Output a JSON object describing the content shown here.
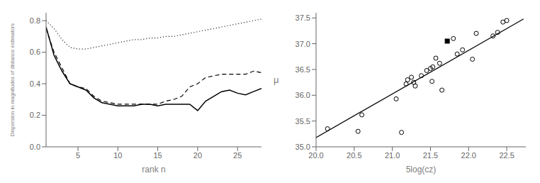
{
  "chart_data": [
    {
      "type": "line",
      "xlabel": "rank n",
      "ylabel": "Dispersion in magnitudes of distance estimators",
      "xlim": [
        1,
        28
      ],
      "ylim": [
        0,
        0.85
      ],
      "xticks": [
        5,
        10,
        15,
        20,
        25
      ],
      "yticks": [
        {
          "value": 0,
          "label": "0.0"
        },
        0.2,
        0.4,
        0.6,
        0.8
      ],
      "x": [
        1,
        2,
        3,
        4,
        5,
        6,
        7,
        8,
        9,
        10,
        11,
        12,
        13,
        14,
        15,
        16,
        17,
        18,
        19,
        20,
        21,
        22,
        23,
        24,
        25,
        26,
        27,
        28
      ],
      "series": [
        {
          "color": "#000000",
          "line_style": "dotted",
          "values": [
            0.8,
            0.75,
            0.68,
            0.63,
            0.62,
            0.62,
            0.63,
            0.64,
            0.65,
            0.66,
            0.67,
            0.68,
            0.68,
            0.69,
            0.69,
            0.7,
            0.7,
            0.71,
            0.72,
            0.73,
            0.74,
            0.75,
            0.76,
            0.77,
            0.78,
            0.79,
            0.8,
            0.81
          ]
        },
        {
          "color": "#000000",
          "line_style": "dashed",
          "values": [
            0.75,
            0.6,
            0.5,
            0.4,
            0.38,
            0.37,
            0.32,
            0.29,
            0.28,
            0.27,
            0.27,
            0.27,
            0.27,
            0.27,
            0.27,
            0.29,
            0.3,
            0.32,
            0.38,
            0.4,
            0.44,
            0.45,
            0.46,
            0.46,
            0.46,
            0.46,
            0.48,
            0.47
          ]
        },
        {
          "color": "#000000",
          "line_style": "solid",
          "values": [
            0.76,
            0.58,
            0.48,
            0.4,
            0.38,
            0.36,
            0.31,
            0.28,
            0.27,
            0.26,
            0.26,
            0.26,
            0.27,
            0.27,
            0.26,
            0.27,
            0.27,
            0.27,
            0.27,
            0.23,
            0.29,
            0.32,
            0.35,
            0.36,
            0.34,
            0.33,
            0.35,
            0.37
          ]
        }
      ]
    },
    {
      "type": "scatter",
      "xlabel": "5log(cz)",
      "ylabel": "μ",
      "xlim": [
        20.0,
        22.75
      ],
      "ylim": [
        35.0,
        37.6
      ],
      "xticks": [
        {
          "value": 20.0,
          "label": "20.0"
        },
        20.5,
        {
          "value": 21.0,
          "label": "21.0"
        },
        21.5,
        {
          "value": 22.0,
          "label": "22.0"
        },
        22.5
      ],
      "yticks": [
        {
          "value": 35.0,
          "label": "35.0"
        },
        35.5,
        {
          "value": 36.0,
          "label": "36.0"
        },
        36.5,
        {
          "value": 37.0,
          "label": "37.0"
        },
        37.5
      ],
      "series": [
        {
          "type": "line",
          "line_style": "solid",
          "color": "#000000",
          "x": [
            20.0,
            22.72
          ],
          "values": [
            35.18,
            37.48
          ]
        },
        {
          "type": "scatter",
          "marker": "circle",
          "color": "#000000",
          "x": [
            20.15,
            20.55,
            20.6,
            21.05,
            21.12,
            21.18,
            21.2,
            21.25,
            21.28,
            21.3,
            21.38,
            21.45,
            21.5,
            21.52,
            21.53,
            21.57,
            21.62,
            21.65,
            21.8,
            21.85,
            21.92,
            22.05,
            22.1,
            22.32,
            22.38,
            22.45,
            22.5
          ],
          "values": [
            35.35,
            35.3,
            35.62,
            35.93,
            35.28,
            36.22,
            36.3,
            36.35,
            36.25,
            36.18,
            36.38,
            36.48,
            36.52,
            36.27,
            36.55,
            36.72,
            36.62,
            36.1,
            37.1,
            36.8,
            36.88,
            36.7,
            37.2,
            37.15,
            37.22,
            37.42,
            37.45
          ]
        },
        {
          "type": "scatter",
          "marker": "square",
          "color": "#000000",
          "x": [
            21.72
          ],
          "values": [
            37.05
          ]
        }
      ]
    }
  ]
}
